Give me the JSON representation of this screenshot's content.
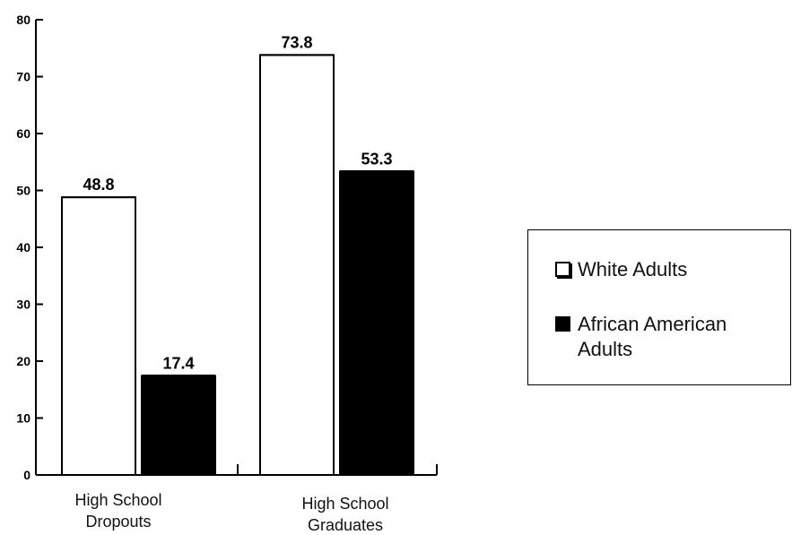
{
  "chart_data": {
    "type": "bar",
    "title": "",
    "xlabel": "",
    "ylabel": "",
    "ylim": [
      0,
      80
    ],
    "yticks": [
      0,
      10,
      20,
      30,
      40,
      50,
      60,
      70,
      80
    ],
    "categories": [
      "High School Dropouts",
      "High School Graduates"
    ],
    "series": [
      {
        "name": "White Adults",
        "values": [
          48.8,
          73.8
        ],
        "value_labels": [
          "48.8",
          "73.8"
        ],
        "color": "#ffffff"
      },
      {
        "name": "African American Adults",
        "values": [
          17.4,
          53.3
        ],
        "value_labels": [
          "17.4",
          "53.3"
        ],
        "color": "#000000"
      }
    ],
    "legend_position": "right",
    "grid": false
  },
  "legend": {
    "white_label": "White Adults",
    "black_label": "African American Adults"
  }
}
